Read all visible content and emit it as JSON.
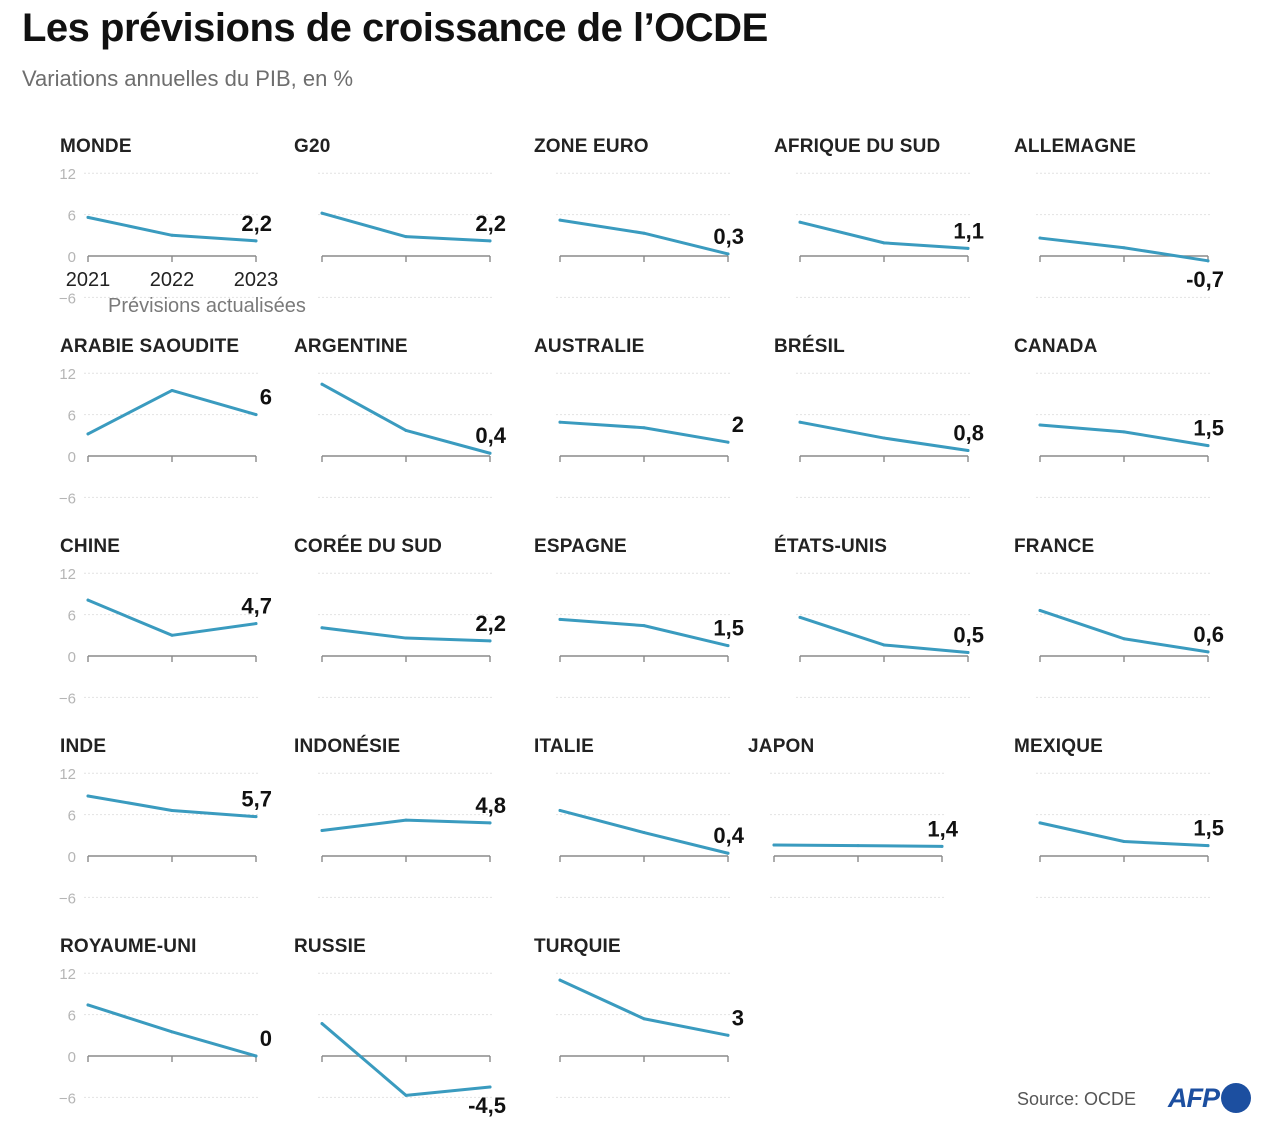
{
  "header": {
    "title": "Les prévisions de croissance de l’OCDE",
    "subtitle": "Variations annuelles du PIB, en %"
  },
  "footer": {
    "source": "Source: OCDE",
    "logo_text": "AFP"
  },
  "colors": {
    "line": "#3a9bbf",
    "axis": "#8a8a8a",
    "grid": "#e2e2e2",
    "tick_label": "#b5b5b5",
    "value_label": "#111111"
  },
  "chart_data": {
    "type": "line",
    "title": "Les prévisions de croissance de l’OCDE",
    "subtitle": "Variations annuelles du PIB, en %",
    "x": [
      "2021",
      "2022",
      "2023"
    ],
    "x_tick_labels_shown_on": "MONDE",
    "ylim": [
      -6,
      12
    ],
    "yticks": [
      "12",
      "6",
      "0",
      "−6"
    ],
    "grid": true,
    "annotation": "Prévisions actualisées",
    "xlabel": "",
    "ylabel": "",
    "panels": [
      {
        "name": "MONDE",
        "values": [
          5.6,
          3.0,
          2.2
        ],
        "label": "2,2"
      },
      {
        "name": "G20",
        "values": [
          6.2,
          2.8,
          2.2
        ],
        "label": "2,2"
      },
      {
        "name": "ZONE EURO",
        "values": [
          5.2,
          3.3,
          0.3
        ],
        "label": "0,3"
      },
      {
        "name": "AFRIQUE DU SUD",
        "values": [
          4.9,
          1.9,
          1.1
        ],
        "label": "1,1"
      },
      {
        "name": "ALLEMAGNE",
        "values": [
          2.6,
          1.2,
          -0.7
        ],
        "label": "-0,7"
      },
      {
        "name": "ARABIE SAOUDITE",
        "values": [
          3.2,
          9.5,
          6.0
        ],
        "label": "6"
      },
      {
        "name": "ARGENTINE",
        "values": [
          10.4,
          3.7,
          0.4
        ],
        "label": "0,4"
      },
      {
        "name": "AUSTRALIE",
        "values": [
          4.9,
          4.1,
          2.0
        ],
        "label": "2"
      },
      {
        "name": "BRÉSIL",
        "values": [
          4.9,
          2.6,
          0.8
        ],
        "label": "0,8"
      },
      {
        "name": "CANADA",
        "values": [
          4.5,
          3.5,
          1.5
        ],
        "label": "1,5"
      },
      {
        "name": "CHINE",
        "values": [
          8.1,
          3.0,
          4.7
        ],
        "label": "4,7"
      },
      {
        "name": "CORÉE DU SUD",
        "values": [
          4.1,
          2.6,
          2.2
        ],
        "label": "2,2"
      },
      {
        "name": "ESPAGNE",
        "values": [
          5.3,
          4.4,
          1.5
        ],
        "label": "1,5"
      },
      {
        "name": "ÉTATS-UNIS",
        "values": [
          5.6,
          1.6,
          0.5
        ],
        "label": "0,5"
      },
      {
        "name": "FRANCE",
        "values": [
          6.6,
          2.5,
          0.6
        ],
        "label": "0,6"
      },
      {
        "name": "INDE",
        "values": [
          8.7,
          6.6,
          5.7
        ],
        "label": "5,7"
      },
      {
        "name": "INDONÉSIE",
        "values": [
          3.7,
          5.2,
          4.8
        ],
        "label": "4,8"
      },
      {
        "name": "ITALIE",
        "values": [
          6.6,
          3.4,
          0.4
        ],
        "label": "0,4"
      },
      {
        "name": "JAPON",
        "values": [
          1.6,
          1.5,
          1.4
        ],
        "label": "1,4"
      },
      {
        "name": "MEXIQUE",
        "values": [
          4.8,
          2.1,
          1.5
        ],
        "label": "1,5"
      },
      {
        "name": "ROYAUME-UNI",
        "values": [
          7.4,
          3.5,
          0.0
        ],
        "label": "0"
      },
      {
        "name": "RUSSIE",
        "values": [
          4.7,
          -5.7,
          -4.5
        ],
        "label": "-4,5"
      },
      {
        "name": "TURQUIE",
        "values": [
          11.0,
          5.4,
          3.0
        ],
        "label": "3"
      }
    ]
  }
}
